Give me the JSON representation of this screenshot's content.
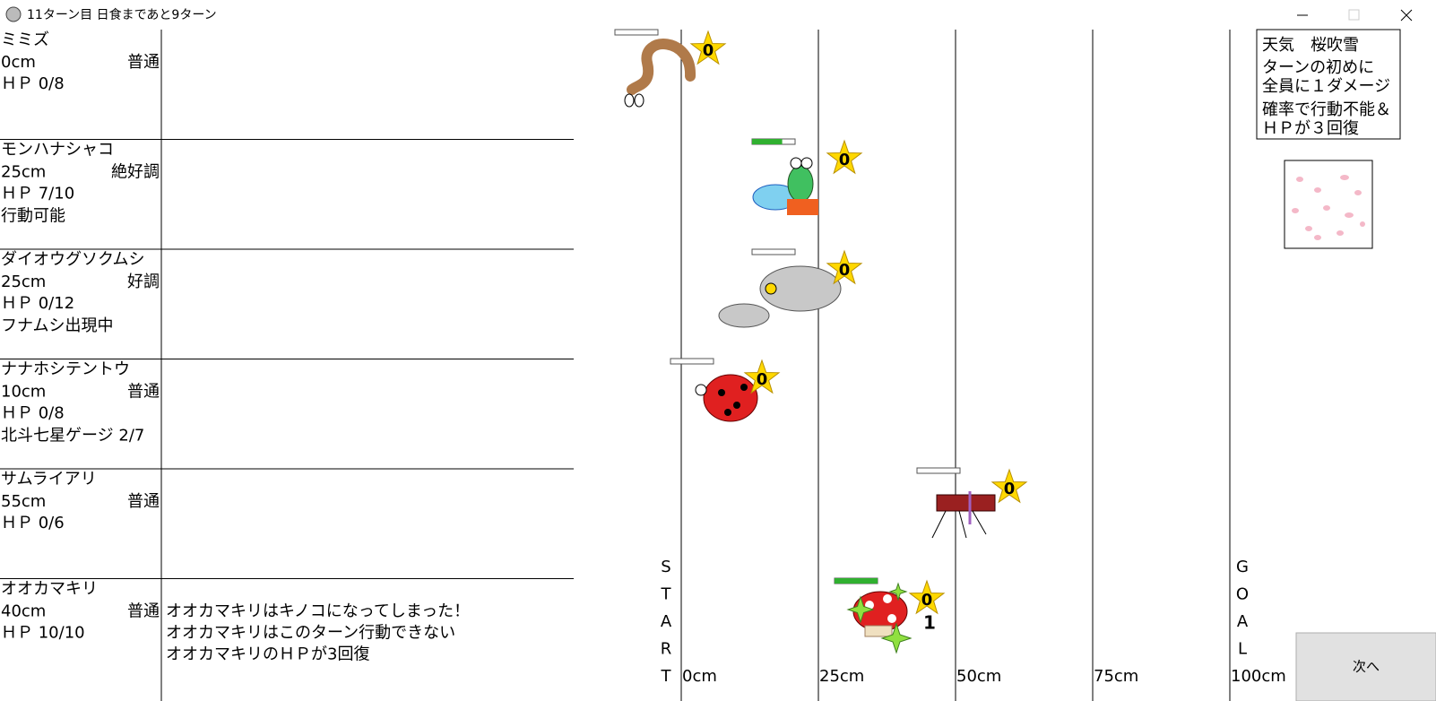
{
  "window": {
    "title": "11ターン目 日食まであと9ターン"
  },
  "rows": [
    {
      "name": "ミミズ",
      "distance": "0cm",
      "condition": "普通",
      "hp": "ＨＰ 0/8",
      "star": "0"
    },
    {
      "name": "モンハナシャコ",
      "distance": "25cm",
      "condition": "絶好調",
      "hp": "ＨＰ 7/10",
      "note": "行動可能",
      "star": "0"
    },
    {
      "name": "ダイオウグソクムシ",
      "distance": "25cm",
      "condition": "好調",
      "hp": "ＨＰ 0/12",
      "note": "フナムシ出現中",
      "star": "0"
    },
    {
      "name": "ナナホシテントウ",
      "distance": "10cm",
      "condition": "普通",
      "hp": "ＨＰ 0/8",
      "note": "北斗七星ゲージ 2/7",
      "star": "0"
    },
    {
      "name": "サムライアリ",
      "distance": "55cm",
      "condition": "普通",
      "hp": "ＨＰ 0/6",
      "star": "0"
    },
    {
      "name": "オオカマキリ",
      "distance": "40cm",
      "condition": "普通",
      "hp": "ＨＰ 10/10",
      "star": "0",
      "sub_count": "1",
      "messages": [
        "オオカマキリはキノコになってしまった！",
        "オオカマキリはこのターン行動できない",
        "オオカマキリのＨＰが3回復"
      ]
    }
  ],
  "track": {
    "start": [
      "S",
      "T",
      "A",
      "R",
      "T"
    ],
    "goal": [
      "G",
      "O",
      "A",
      "L"
    ],
    "ticks": [
      "0cm",
      "25cm",
      "50cm",
      "75cm",
      "100cm"
    ]
  },
  "weather": {
    "title": "天気　桜吹雪",
    "lines": [
      "ターンの初めに",
      "全員に１ダメージ",
      "確率で行動不能＆",
      "ＨＰが３回復"
    ]
  },
  "next_button": "次へ"
}
